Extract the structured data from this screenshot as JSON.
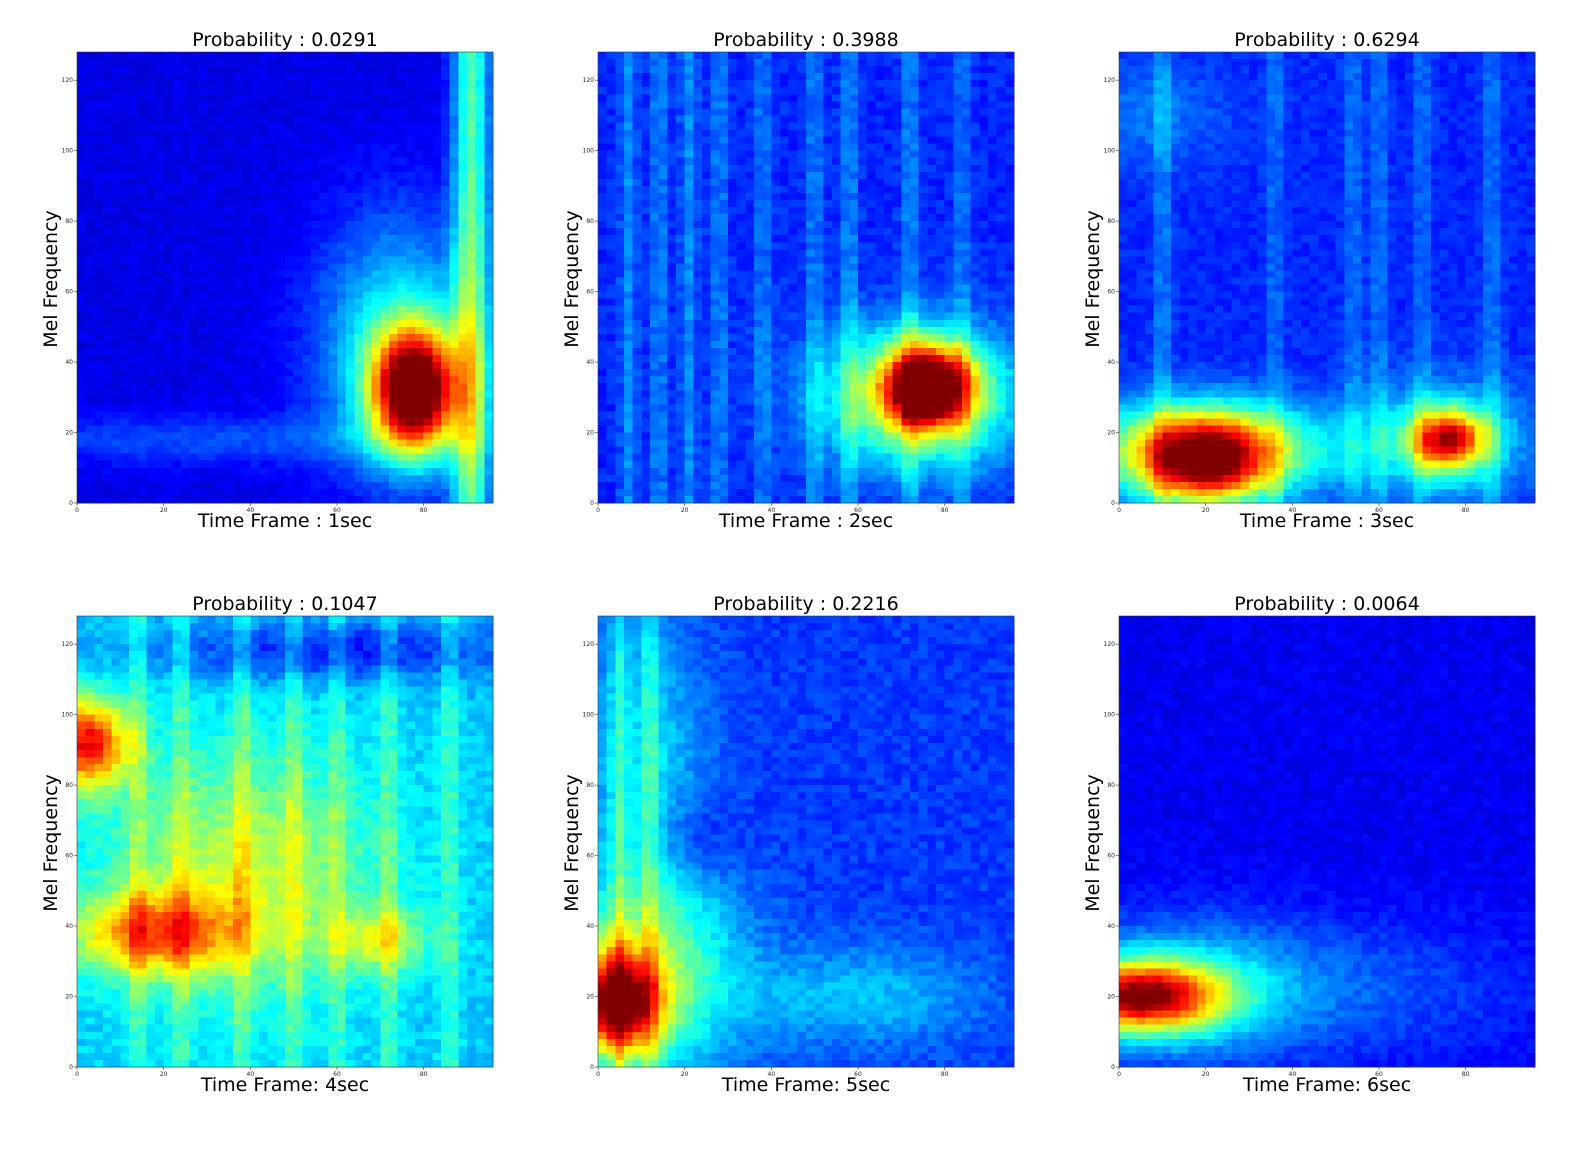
{
  "colormap": "jet",
  "chart_data": [
    {
      "type": "heatmap",
      "title": "Probability : 0.0291",
      "xlabel": "Time Frame : 1sec",
      "ylabel": "Mel Frequency",
      "xlim": [
        0,
        96
      ],
      "ylim": [
        0,
        128
      ],
      "xticks": [
        "0",
        "20",
        "40",
        "60",
        "80"
      ],
      "yticks": [
        "0",
        "20",
        "40",
        "60",
        "80",
        "100",
        "120"
      ],
      "base": 0.1,
      "hotspots": [
        {
          "x": 78,
          "y": 32,
          "sx": 7,
          "sy": 12,
          "v": 0.92
        },
        {
          "x": 74,
          "y": 45,
          "sx": 13,
          "sy": 25,
          "v": 0.28
        },
        {
          "x": 30,
          "y": 18,
          "sx": 40,
          "sy": 5,
          "v": 0.1
        }
      ],
      "stripes": [
        {
          "x": 91,
          "w": 3,
          "v": 0.35
        }
      ],
      "noise": 0.04
    },
    {
      "type": "heatmap",
      "title": "Probability : 0.3988",
      "xlabel": "Time Frame : 2sec",
      "ylabel": "Mel Frequency",
      "xlim": [
        0,
        96
      ],
      "ylim": [
        0,
        128
      ],
      "xticks": [
        "0",
        "20",
        "40",
        "60",
        "80"
      ],
      "yticks": [
        "0",
        "20",
        "40",
        "60",
        "80",
        "100",
        "120"
      ],
      "base": 0.16,
      "hotspots": [
        {
          "x": 76,
          "y": 33,
          "sx": 7,
          "sy": 8,
          "v": 0.78
        },
        {
          "x": 74,
          "y": 30,
          "sx": 16,
          "sy": 14,
          "v": 0.4
        }
      ],
      "stripes": [
        {
          "x": 7,
          "w": 1.4,
          "v": 0.1
        },
        {
          "x": 14,
          "w": 1.4,
          "v": 0.09
        },
        {
          "x": 21,
          "w": 1.4,
          "v": 0.1
        },
        {
          "x": 28,
          "w": 1.4,
          "v": 0.09
        },
        {
          "x": 38,
          "w": 1.4,
          "v": 0.08
        },
        {
          "x": 50,
          "w": 1.4,
          "v": 0.09
        },
        {
          "x": 58,
          "w": 1.4,
          "v": 0.1
        },
        {
          "x": 72,
          "w": 1.4,
          "v": 0.1
        },
        {
          "x": 84,
          "w": 1.4,
          "v": 0.08
        }
      ],
      "noise": 0.06
    },
    {
      "type": "heatmap",
      "title": "Probability : 0.6294",
      "xlabel": "Time Frame : 3sec",
      "ylabel": "Mel Frequency",
      "xlim": [
        0,
        96
      ],
      "ylim": [
        0,
        128
      ],
      "xticks": [
        "0",
        "20",
        "40",
        "60",
        "80"
      ],
      "yticks": [
        "0",
        "20",
        "40",
        "60",
        "80",
        "100",
        "120"
      ],
      "base": 0.16,
      "hotspots": [
        {
          "x": 20,
          "y": 12,
          "sx": 11,
          "sy": 9,
          "v": 0.72
        },
        {
          "x": 20,
          "y": 16,
          "sx": 24,
          "sy": 9,
          "v": 0.32
        },
        {
          "x": 76,
          "y": 18,
          "sx": 6,
          "sy": 6,
          "v": 0.6
        },
        {
          "x": 76,
          "y": 18,
          "sx": 14,
          "sy": 12,
          "v": 0.2
        },
        {
          "x": 5,
          "y": 110,
          "sx": 15,
          "sy": 10,
          "v": 0.08
        }
      ],
      "stripes": [
        {
          "x": 10,
          "w": 1.5,
          "v": 0.09
        },
        {
          "x": 36,
          "w": 1.5,
          "v": 0.07
        },
        {
          "x": 54,
          "w": 1.5,
          "v": 0.08
        },
        {
          "x": 60,
          "w": 1.5,
          "v": 0.08
        },
        {
          "x": 70,
          "w": 1.5,
          "v": 0.07
        },
        {
          "x": 86,
          "w": 1.5,
          "v": 0.08
        }
      ],
      "noise": 0.05
    },
    {
      "type": "heatmap",
      "title": "Probability : 0.1047",
      "xlabel": "Time Frame: 4sec",
      "ylabel": "Mel Frequency",
      "xlim": [
        0,
        96
      ],
      "ylim": [
        0,
        128
      ],
      "xticks": [
        "0",
        "20",
        "40",
        "60",
        "80"
      ],
      "yticks": [
        "0",
        "20",
        "40",
        "60",
        "80",
        "100",
        "120"
      ],
      "base": 0.32,
      "hotspots": [
        {
          "x": 2,
          "y": 92,
          "sx": 7,
          "sy": 9,
          "v": 0.55
        },
        {
          "x": 18,
          "y": 38,
          "sx": 14,
          "sy": 8,
          "v": 0.38
        },
        {
          "x": 38,
          "y": 55,
          "sx": 22,
          "sy": 25,
          "v": 0.24
        },
        {
          "x": 70,
          "y": 36,
          "sx": 8,
          "sy": 6,
          "v": 0.22
        },
        {
          "x": 60,
          "y": 118,
          "sx": 30,
          "sy": 6,
          "v": -0.18
        }
      ],
      "stripes": [
        {
          "x": 14,
          "w": 1.6,
          "v": 0.1
        },
        {
          "x": 24,
          "w": 1.6,
          "v": 0.1
        },
        {
          "x": 38,
          "w": 1.6,
          "v": 0.11
        },
        {
          "x": 50,
          "w": 1.6,
          "v": 0.1
        },
        {
          "x": 60,
          "w": 1.6,
          "v": 0.09
        },
        {
          "x": 72,
          "w": 1.6,
          "v": 0.1
        },
        {
          "x": 86,
          "w": 1.6,
          "v": 0.1
        }
      ],
      "noise": 0.07
    },
    {
      "type": "heatmap",
      "title": "Probability : 0.2216",
      "xlabel": "Time Frame: 5sec",
      "ylabel": "Mel Frequency",
      "xlim": [
        0,
        96
      ],
      "ylim": [
        0,
        128
      ],
      "xticks": [
        "0",
        "20",
        "40",
        "60",
        "80"
      ],
      "yticks": [
        "0",
        "20",
        "40",
        "60",
        "80",
        "100",
        "120"
      ],
      "base": 0.18,
      "hotspots": [
        {
          "x": 4,
          "y": 18,
          "sx": 7,
          "sy": 10,
          "v": 0.68
        },
        {
          "x": 12,
          "y": 28,
          "sx": 14,
          "sy": 22,
          "v": 0.32
        },
        {
          "x": 10,
          "y": 90,
          "sx": 10,
          "sy": 28,
          "v": 0.16
        },
        {
          "x": 60,
          "y": 20,
          "sx": 20,
          "sy": 10,
          "v": 0.14
        },
        {
          "x": 22,
          "y": 64,
          "sx": 7,
          "sy": 9,
          "v": -0.08
        }
      ],
      "stripes": [
        {
          "x": 5,
          "w": 1.4,
          "v": 0.12
        },
        {
          "x": 12,
          "w": 1.4,
          "v": 0.12
        }
      ],
      "noise": 0.06
    },
    {
      "type": "heatmap",
      "title": "Probability : 0.0064",
      "xlabel": "Time Frame: 6sec",
      "ylabel": "Mel Frequency",
      "xlim": [
        0,
        96
      ],
      "ylim": [
        0,
        128
      ],
      "xticks": [
        "0",
        "20",
        "40",
        "60",
        "80"
      ],
      "yticks": [
        "0",
        "20",
        "40",
        "60",
        "80",
        "100",
        "120"
      ],
      "base": 0.11,
      "hotspots": [
        {
          "x": 5,
          "y": 20,
          "sx": 13,
          "sy": 7,
          "v": 0.72
        },
        {
          "x": 15,
          "y": 22,
          "sx": 22,
          "sy": 14,
          "v": 0.22
        },
        {
          "x": 60,
          "y": 22,
          "sx": 30,
          "sy": 14,
          "v": 0.08
        }
      ],
      "stripes": [],
      "noise": 0.05
    }
  ]
}
